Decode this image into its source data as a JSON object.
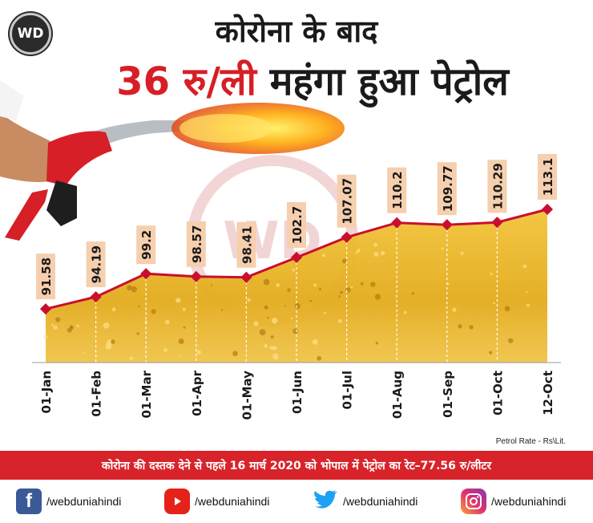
{
  "brand": {
    "logo_text": "WD"
  },
  "title": {
    "line1": "कोरोना के बाद",
    "line2_red": "36 रु/ली",
    "line2_black": "महंगा हुआ पेट्रोल"
  },
  "note": "Petrol Rate - Rs\\Lit.",
  "banner": "कोरोना की दस्तक देने से पहले 16 मार्च 2020 को भोपाल में पेट्रोल का रेट–77.56 रु/लीटर",
  "social": [
    {
      "icon": "facebook-icon",
      "label": "/webduniahindi"
    },
    {
      "icon": "youtube-icon",
      "label": "/webduniahindi"
    },
    {
      "icon": "twitter-icon",
      "label": "/webduniahindi"
    },
    {
      "icon": "instagram-icon",
      "label": "/webduniahindi"
    }
  ],
  "colors": {
    "accent": "#d61f26",
    "line": "#c8102e",
    "fill": "#e8b627",
    "label_box": "#f6cfae"
  },
  "chart_data": {
    "type": "area",
    "title": "",
    "xlabel": "",
    "ylabel": "",
    "categories": [
      "01-Jan",
      "01-Feb",
      "01-Mar",
      "01-Apr",
      "01-May",
      "01-Jun",
      "01-Jul",
      "01-Aug",
      "01-Sep",
      "01-Oct",
      "12-Oct"
    ],
    "values": [
      91.58,
      94.19,
      99.2,
      98.57,
      98.41,
      102.7,
      107.07,
      110.2,
      109.77,
      110.29,
      113.1
    ],
    "value_labels": [
      "91.58",
      "94.19",
      "99.2",
      "98.57",
      "98.41",
      "102.7",
      "107.07",
      "110.2",
      "109.77",
      "110.29",
      "113.1"
    ],
    "ylim": [
      80,
      115
    ],
    "grid": false,
    "legend": "none"
  }
}
